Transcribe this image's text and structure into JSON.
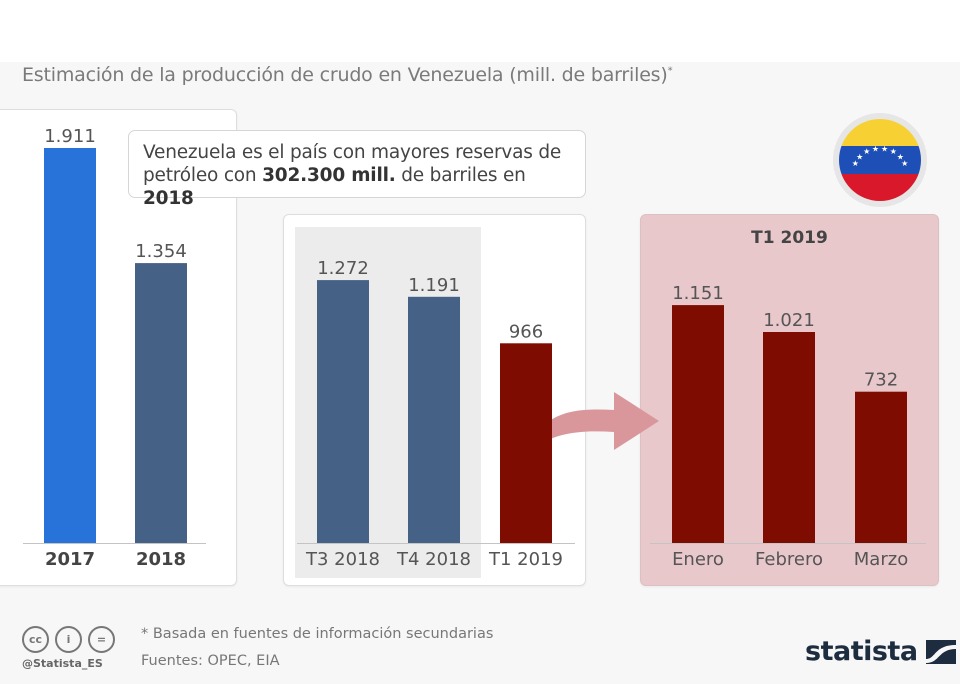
{
  "title": "Estimación de la producción de crudo en Venezuela (mill. de barriles)",
  "title_marker": "*",
  "callout": {
    "part1": "Venezuela es el país con mayores reservas de petróleo con ",
    "bold1": "302.300 mill.",
    "part2": " de barriles en ",
    "bold2": "2018"
  },
  "flag": {
    "name": "Venezuela",
    "colors": {
      "yellow": "#f7d033",
      "blue": "#1d4fb6",
      "red": "#d9192b",
      "stars": "#ffffff"
    }
  },
  "panel3_title": "T1 2019",
  "colors": {
    "blue_bright": "#2873da",
    "blue_dark": "#456186",
    "dark_red": "#7e0c00",
    "arrow": "#d9979b",
    "panel3_bg": "#e9c8cb"
  },
  "chart_data": [
    {
      "type": "bar",
      "title": "",
      "categories": [
        "2017",
        "2018"
      ],
      "values": [
        1911,
        1354
      ],
      "value_labels": [
        "1.911",
        "1.354"
      ],
      "bar_colors": [
        "#2873da",
        "#456186"
      ],
      "xlabel": "",
      "ylabel": "mill. de barriles",
      "ylim": [
        0,
        1911
      ],
      "grid": false
    },
    {
      "type": "bar",
      "title": "",
      "categories": [
        "T3 2018",
        "T4 2018",
        "T1 2019"
      ],
      "values": [
        1272,
        1191,
        966
      ],
      "value_labels": [
        "1.272",
        "1.191",
        "966"
      ],
      "bar_colors": [
        "#456186",
        "#456186",
        "#7e0c00"
      ],
      "xlabel": "",
      "ylabel": "mill. de barriles",
      "ylim": [
        0,
        1911
      ],
      "grid": false
    },
    {
      "type": "bar",
      "title": "T1 2019",
      "categories": [
        "Enero",
        "Febrero",
        "Marzo"
      ],
      "values": [
        1151,
        1021,
        732
      ],
      "value_labels": [
        "1.151",
        "1.021",
        "732"
      ],
      "bar_colors": [
        "#7e0c00",
        "#7e0c00",
        "#7e0c00"
      ],
      "xlabel": "",
      "ylabel": "mill. de barriles",
      "ylim": [
        0,
        1911
      ],
      "grid": false
    }
  ],
  "footer": {
    "note": "* Basada en fuentes de información secundarias",
    "sources": "Fuentes: OPEC, EIA",
    "handle": "@Statista_ES",
    "license_icons": [
      "cc-icon",
      "attribution-icon",
      "no-derivatives-icon"
    ],
    "license_glyphs": [
      "cc",
      "i",
      "="
    ],
    "logo_text": "statista"
  }
}
